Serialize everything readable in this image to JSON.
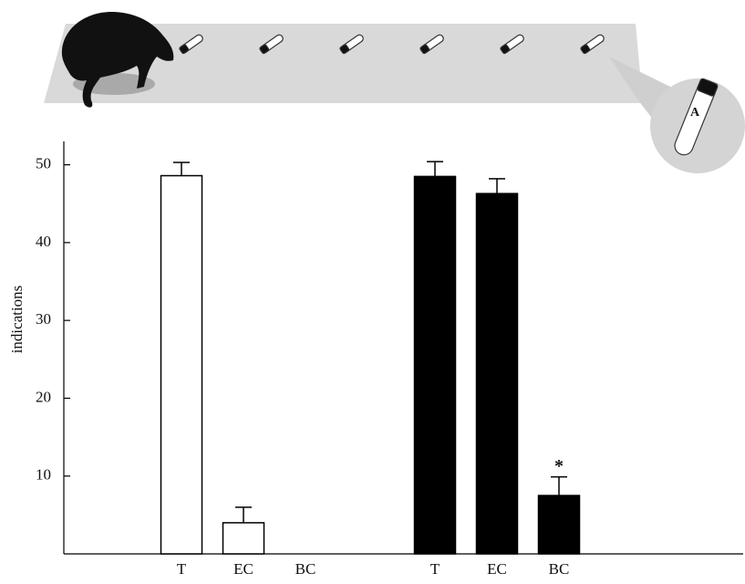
{
  "chart_data": {
    "type": "bar",
    "ylabel": "indications",
    "ylim": [
      0,
      53
    ],
    "yticks": [
      10,
      20,
      30,
      40,
      50
    ],
    "illustration_label": "A",
    "series": [
      {
        "color": "#ffffff",
        "categories": [
          "T",
          "EC",
          "BC"
        ],
        "values": [
          48.6,
          4,
          0
        ],
        "errors": [
          1.7,
          2,
          null
        ],
        "annotations": [
          null,
          null,
          null
        ]
      },
      {
        "color": "#000000",
        "categories": [
          "T",
          "EC",
          "BC"
        ],
        "values": [
          48.5,
          46.3,
          7.5
        ],
        "errors": [
          1.9,
          1.9,
          2.4
        ],
        "annotations": [
          null,
          null,
          "*"
        ]
      }
    ]
  }
}
